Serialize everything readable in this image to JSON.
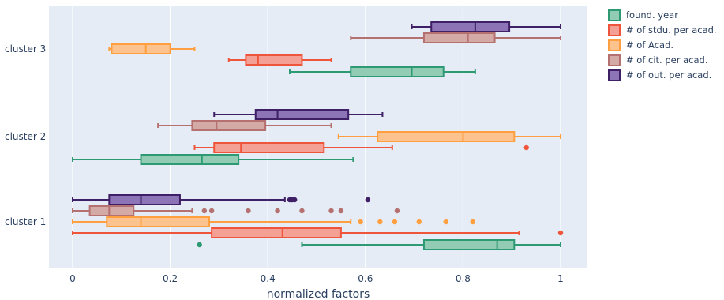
{
  "chart_data": {
    "type": "box",
    "orientation": "horizontal",
    "categories": [
      "cluster 1",
      "cluster 2",
      "cluster 3"
    ],
    "xlabel": "normalized factors",
    "ylabel": "",
    "xlim": [
      -0.05,
      1.05
    ],
    "xticks": [
      0,
      0.2,
      0.4,
      0.6,
      0.8,
      1
    ],
    "tick_labels": [
      "0",
      "0.2",
      "0.4",
      "0.6",
      "0.8",
      "1"
    ],
    "grid": true,
    "legend_position": "top-right",
    "series": [
      {
        "name": "found. year",
        "color": "#2e9a74",
        "fill": "#93ccb4",
        "boxes": [
          {
            "category": "cluster 1",
            "lower_whisker": 0.47,
            "q1": 0.72,
            "median": 0.87,
            "q3": 0.905,
            "upper_whisker": 1.0,
            "outliers": [
              0.26
            ]
          },
          {
            "category": "cluster 2",
            "lower_whisker": 0.0,
            "q1": 0.14,
            "median": 0.265,
            "q3": 0.34,
            "upper_whisker": 0.575,
            "outliers": []
          },
          {
            "category": "cluster 3",
            "lower_whisker": 0.445,
            "q1": 0.57,
            "median": 0.695,
            "q3": 0.76,
            "upper_whisker": 0.825,
            "outliers": []
          }
        ]
      },
      {
        "name": "# of stdu. per acad.",
        "color": "#ef553b",
        "fill": "#f5a094",
        "boxes": [
          {
            "category": "cluster 1",
            "lower_whisker": 0.0,
            "q1": 0.285,
            "median": 0.43,
            "q3": 0.55,
            "upper_whisker": 0.915,
            "outliers": [
              1.0
            ]
          },
          {
            "category": "cluster 2",
            "lower_whisker": 0.25,
            "q1": 0.29,
            "median": 0.345,
            "q3": 0.515,
            "upper_whisker": 0.655,
            "outliers": [
              0.93
            ]
          },
          {
            "category": "cluster 3",
            "lower_whisker": 0.32,
            "q1": 0.355,
            "median": 0.38,
            "q3": 0.47,
            "upper_whisker": 0.53,
            "outliers": []
          }
        ]
      },
      {
        "name": "# of Acad.",
        "color": "#ff9f40",
        "fill": "#fcc38e",
        "boxes": [
          {
            "category": "cluster 1",
            "lower_whisker": 0.0,
            "q1": 0.07,
            "median": 0.14,
            "q3": 0.28,
            "upper_whisker": 0.57,
            "outliers": [
              0.59,
              0.63,
              0.66,
              0.71,
              0.765,
              0.82
            ]
          },
          {
            "category": "cluster 2",
            "lower_whisker": 0.545,
            "q1": 0.625,
            "median": 0.8,
            "q3": 0.905,
            "upper_whisker": 1.0,
            "outliers": []
          },
          {
            "category": "cluster 3",
            "lower_whisker": 0.075,
            "q1": 0.08,
            "median": 0.15,
            "q3": 0.2,
            "upper_whisker": 0.25,
            "outliers": []
          }
        ]
      },
      {
        "name": "# of cit. per acad.",
        "color": "#b57070",
        "fill": "#d3aaa6",
        "boxes": [
          {
            "category": "cluster 1",
            "lower_whisker": 0.0,
            "q1": 0.035,
            "median": 0.075,
            "q3": 0.125,
            "upper_whisker": 0.245,
            "outliers": [
              0.27,
              0.285,
              0.36,
              0.42,
              0.47,
              0.53,
              0.55,
              0.665
            ]
          },
          {
            "category": "cluster 2",
            "lower_whisker": 0.175,
            "q1": 0.245,
            "median": 0.295,
            "q3": 0.395,
            "upper_whisker": 0.53,
            "outliers": []
          },
          {
            "category": "cluster 3",
            "lower_whisker": 0.57,
            "q1": 0.72,
            "median": 0.81,
            "q3": 0.865,
            "upper_whisker": 1.0,
            "outliers": []
          }
        ]
      },
      {
        "name": "# of out. per acad.",
        "color": "#3f1f66",
        "fill": "#8c74b6",
        "boxes": [
          {
            "category": "cluster 1",
            "lower_whisker": 0.0,
            "q1": 0.075,
            "median": 0.14,
            "q3": 0.22,
            "upper_whisker": 0.435,
            "outliers": [
              0.445,
              0.45,
              0.455,
              0.605
            ]
          },
          {
            "category": "cluster 2",
            "lower_whisker": 0.29,
            "q1": 0.375,
            "median": 0.42,
            "q3": 0.565,
            "upper_whisker": 0.635,
            "outliers": []
          },
          {
            "category": "cluster 3",
            "lower_whisker": 0.695,
            "q1": 0.735,
            "median": 0.825,
            "q3": 0.895,
            "upper_whisker": 1.0,
            "outliers": []
          }
        ]
      }
    ]
  }
}
